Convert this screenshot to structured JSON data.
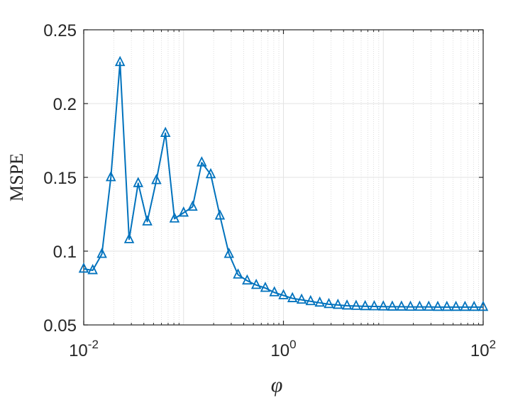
{
  "chart_data": {
    "type": "line",
    "title": "",
    "xlabel": "φ",
    "ylabel": "MSPE",
    "xscale": "log",
    "xlim": [
      0.01,
      100
    ],
    "ylim": [
      0.05,
      0.25
    ],
    "grid": true,
    "legend": "none",
    "color": "#0072bd",
    "marker": "triangle",
    "y_ticks": [
      "0.05",
      "0.1",
      "0.15",
      "0.2",
      "0.25"
    ],
    "x_ticks": [
      {
        "base": "10",
        "exp": "-2"
      },
      {
        "base": "10",
        "exp": "0"
      },
      {
        "base": "10",
        "exp": "2"
      }
    ],
    "series": [
      {
        "x": [
          0.01,
          0.0123,
          0.0152,
          0.0187,
          0.0231,
          0.0285,
          0.0351,
          0.0433,
          0.0534,
          0.0658,
          0.0811,
          0.1,
          0.123,
          0.152,
          0.187,
          0.231,
          0.285,
          0.351,
          0.433,
          0.534,
          0.658,
          0.811,
          1.0,
          1.23,
          1.52,
          1.87,
          2.31,
          2.85,
          3.51,
          4.33,
          5.34,
          6.58,
          8.11,
          10.0,
          12.3,
          15.2,
          18.7,
          23.1,
          28.5,
          35.1,
          43.3,
          53.4,
          65.8,
          81.1,
          100
        ],
        "y": [
          0.088,
          0.087,
          0.098,
          0.15,
          0.228,
          0.108,
          0.146,
          0.12,
          0.148,
          0.18,
          0.122,
          0.126,
          0.13,
          0.16,
          0.152,
          0.124,
          0.098,
          0.084,
          0.08,
          0.077,
          0.075,
          0.072,
          0.07,
          0.068,
          0.067,
          0.066,
          0.065,
          0.064,
          0.0635,
          0.063,
          0.0628,
          0.0626,
          0.0625,
          0.0624,
          0.0623,
          0.0623,
          0.0622,
          0.0622,
          0.0622,
          0.0621,
          0.0621,
          0.0621,
          0.0621,
          0.0621,
          0.0621
        ]
      }
    ]
  }
}
